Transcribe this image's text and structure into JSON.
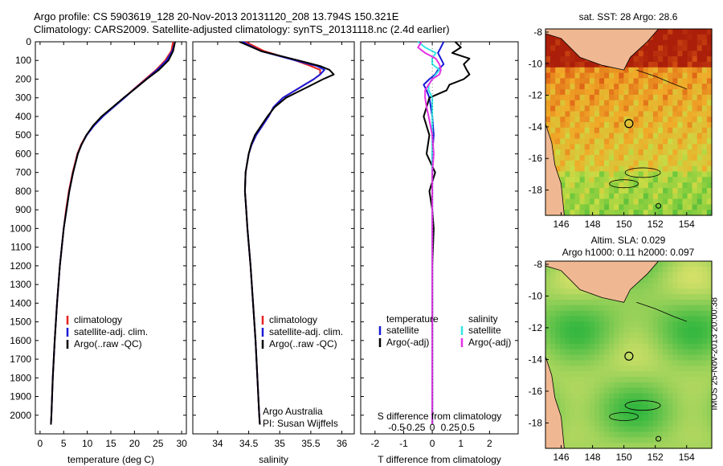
{
  "header": {
    "line1": "Argo profile: CS 5903619_128 20-Nov-2013 20131120_208 13.794S 150.321E",
    "line2": "Climatology: CARS2009. Satellite-adjusted climatology: synTS_20131118.nc (2.4d earlier)"
  },
  "stamp": "IMOS 25-Nov-2013 20:00:38",
  "colors": {
    "clim": "#e8231f",
    "sat": "#1a1ad6",
    "argo": "#000000",
    "sal_sat": "#33e6e6",
    "sal_argo": "#e633e6",
    "land": "#f0b892"
  },
  "chart_data": [
    {
      "type": "line",
      "id": "temperature",
      "xlabel": "temperature (deg C)",
      "ylabel": "",
      "xlim": [
        -1,
        31
      ],
      "ylim": [
        2100,
        0
      ],
      "xticks": [
        "0",
        "5",
        "10",
        "15",
        "20",
        "25",
        "30"
      ],
      "yticks": [
        "0",
        "100",
        "200",
        "300",
        "400",
        "500",
        "600",
        "700",
        "800",
        "900",
        "1000",
        "1100",
        "1200",
        "1300",
        "1400",
        "1500",
        "1600",
        "1700",
        "1800",
        "1900",
        "2000"
      ],
      "depth": [
        0,
        50,
        100,
        150,
        200,
        250,
        300,
        350,
        400,
        450,
        500,
        550,
        600,
        700,
        800,
        900,
        1000,
        1200,
        1400,
        1600,
        1800,
        2000,
        2050
      ],
      "series": [
        {
          "name": "climatology",
          "values": [
            28.2,
            27.8,
            26.5,
            24.6,
            22.3,
            20.0,
            17.8,
            15.5,
            13.2,
            11.3,
            9.8,
            8.7,
            7.9,
            6.9,
            6.1,
            5.5,
            5.0,
            4.2,
            3.6,
            3.1,
            2.7,
            2.4,
            2.3
          ]
        },
        {
          "name": "satellite-adj. clim.",
          "values": [
            28.6,
            28.0,
            26.8,
            24.8,
            22.5,
            20.1,
            17.9,
            15.6,
            13.3,
            11.4,
            9.9,
            8.8,
            8.0,
            7.0,
            6.2,
            5.6,
            5.0,
            4.2,
            3.6,
            3.1,
            2.7,
            2.4,
            2.3
          ]
        },
        {
          "name": "Argo(..raw -QC)",
          "values": [
            28.6,
            28.2,
            27.2,
            25.2,
            22.6,
            20.2,
            17.7,
            15.4,
            13.0,
            11.2,
            9.8,
            8.8,
            8.0,
            7.0,
            6.2,
            5.6,
            5.0,
            4.2,
            3.6,
            3.1,
            2.7,
            2.4,
            2.3
          ]
        }
      ],
      "legend": [
        "climatology",
        "satellite-adj. clim.",
        "Argo(..raw -QC)"
      ]
    },
    {
      "type": "line",
      "id": "salinity",
      "xlabel": "salinity",
      "xlim": [
        33.6,
        36.2
      ],
      "ylim": [
        2100,
        0
      ],
      "xticks": [
        "34",
        "34.5",
        "35",
        "35.5",
        "36"
      ],
      "depth": [
        0,
        50,
        100,
        130,
        150,
        175,
        200,
        250,
        300,
        350,
        400,
        450,
        500,
        550,
        600,
        700,
        800,
        900,
        1000,
        1200,
        1400,
        1600,
        1800,
        2000,
        2050
      ],
      "series": [
        {
          "name": "climatology",
          "values": [
            34.45,
            34.75,
            35.25,
            35.5,
            35.65,
            35.65,
            35.55,
            35.3,
            35.05,
            34.9,
            34.82,
            34.72,
            34.62,
            34.55,
            34.5,
            34.45,
            34.44,
            34.46,
            34.48,
            34.53,
            34.57,
            34.61,
            34.64,
            34.67,
            34.68
          ]
        },
        {
          "name": "satellite-adj. clim.",
          "values": [
            34.4,
            34.7,
            35.25,
            35.6,
            35.72,
            35.65,
            35.55,
            35.3,
            35.05,
            34.9,
            34.82,
            34.72,
            34.62,
            34.55,
            34.5,
            34.45,
            34.44,
            34.46,
            34.48,
            34.53,
            34.57,
            34.61,
            34.64,
            34.67,
            34.68
          ]
        },
        {
          "name": "Argo(..raw -QC)",
          "values": [
            34.35,
            34.7,
            35.3,
            35.65,
            35.8,
            35.87,
            35.7,
            35.4,
            35.1,
            34.92,
            34.8,
            34.7,
            34.6,
            34.54,
            34.5,
            34.45,
            34.44,
            34.46,
            34.48,
            34.53,
            34.57,
            34.61,
            34.64,
            34.67,
            34.68
          ]
        }
      ],
      "legend": [
        "climatology",
        "satellite-adj. clim.",
        "Argo(..raw -QC)"
      ],
      "annotations": [
        "Argo Australia",
        "PI: Susan Wijffels"
      ]
    },
    {
      "type": "line",
      "id": "differences",
      "xlabel": "T difference from climatology",
      "xlabel_top": "S difference from climatology",
      "xlim": [
        -2.5,
        3.0
      ],
      "ylim": [
        2100,
        0
      ],
      "xticks": [
        "-2",
        "-1",
        "0",
        "1",
        "2"
      ],
      "xticks_s": [
        "-0.5",
        "-0.25",
        "0",
        "0.25",
        "0.5"
      ],
      "depth": [
        0,
        30,
        60,
        90,
        120,
        150,
        175,
        200,
        230,
        260,
        300,
        350,
        400,
        500,
        600,
        700,
        800,
        900,
        1000,
        1200,
        1500,
        2000,
        2050
      ],
      "series": [
        {
          "name": "T satellite",
          "values": [
            0.4,
            0.3,
            0.2,
            0.3,
            0.4,
            0.2,
            0.1,
            -0.1,
            -0.3,
            -0.2,
            -0.1,
            -0.05,
            0,
            0.05,
            0,
            0,
            0,
            0,
            0,
            0,
            0,
            0,
            0
          ]
        },
        {
          "name": "T Argo(-adj)",
          "values": [
            0.8,
            1.0,
            0.7,
            1.3,
            1.1,
            1.2,
            1.3,
            1.1,
            0.6,
            0.5,
            -0.1,
            -0.2,
            -0.3,
            -0.1,
            -0.2,
            0.1,
            -0.1,
            0,
            0.05,
            0,
            0,
            0,
            0
          ]
        },
        {
          "name": "S satellite",
          "values": [
            -0.2,
            -0.1,
            0.05,
            0.0,
            0.0,
            0.1,
            0.05,
            0.0,
            -0.05,
            -0.05,
            0.0,
            0.0,
            0.0,
            0.0,
            0.0,
            0.0,
            0.0,
            0.0,
            0.0,
            0.0,
            0.0,
            0.0,
            0.0
          ]
        },
        {
          "name": "S Argo(-adj)",
          "values": [
            -0.15,
            -0.2,
            -0.1,
            0.05,
            0.1,
            0.12,
            0.1,
            0.0,
            -0.05,
            -0.1,
            -0.1,
            -0.08,
            -0.05,
            0.0,
            0.02,
            0.0,
            0.0,
            0.0,
            0.0,
            0.0,
            0.0,
            0.0,
            0.0
          ]
        }
      ],
      "legend_titles": [
        "temperature",
        "salinity"
      ],
      "legend_t": [
        "satellite",
        "Argo(-adj)"
      ],
      "legend_s": [
        "satellite",
        "Argo(-adj)"
      ]
    },
    {
      "type": "heatmap",
      "id": "sst_map",
      "title": "sat. SST: 28 Argo: 28.6",
      "xticks": [
        "146",
        "148",
        "150",
        "152",
        "154"
      ],
      "yticks": [
        "-8",
        "-10",
        "-12",
        "-14",
        "-16",
        "-18"
      ],
      "xlim": [
        145,
        155.6
      ],
      "ylim": [
        -19.6,
        -7.8
      ],
      "marker": {
        "lon": 150.32,
        "lat": -13.79
      }
    },
    {
      "type": "heatmap",
      "id": "sla_map",
      "title_lines": [
        "Altim. SLA: 0.029",
        "Argo h1000: 0.11 h2000: 0.097"
      ],
      "xticks": [
        "146",
        "148",
        "150",
        "152",
        "154"
      ],
      "yticks": [
        "-8",
        "-10",
        "-12",
        "-14",
        "-16",
        "-18"
      ],
      "xlim": [
        145,
        155.6
      ],
      "ylim": [
        -19.6,
        -7.8
      ],
      "marker": {
        "lon": 150.32,
        "lat": -13.79
      }
    }
  ]
}
